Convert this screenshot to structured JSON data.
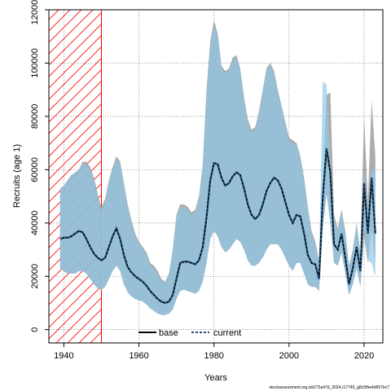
{
  "chart_data": {
    "type": "line",
    "xlabel": "Years",
    "ylabel": "Recruits (age 1)",
    "xlim": [
      1936,
      2025
    ],
    "ylim": [
      -5000,
      120000
    ],
    "xticks": [
      1940,
      1960,
      1980,
      2000,
      2020
    ],
    "yticks": [
      0,
      20000,
      40000,
      60000,
      80000,
      100000,
      120000
    ],
    "grid": true,
    "legend_position": "bottom-center",
    "shaded_region": {
      "x_start": 1936,
      "x_end": 1950,
      "pattern": "hatched",
      "color": "#ff0000"
    },
    "x": [
      1939,
      1940,
      1941,
      1942,
      1943,
      1944,
      1945,
      1946,
      1947,
      1948,
      1949,
      1950,
      1951,
      1952,
      1953,
      1954,
      1955,
      1956,
      1957,
      1958,
      1959,
      1960,
      1961,
      1962,
      1963,
      1964,
      1965,
      1966,
      1967,
      1968,
      1969,
      1970,
      1971,
      1972,
      1973,
      1974,
      1975,
      1976,
      1977,
      1978,
      1979,
      1980,
      1981,
      1982,
      1983,
      1984,
      1985,
      1986,
      1987,
      1988,
      1989,
      1990,
      1991,
      1992,
      1993,
      1994,
      1995,
      1996,
      1997,
      1998,
      1999,
      2000,
      2001,
      2002,
      2003,
      2004,
      2005,
      2006,
      2007,
      2008,
      2009,
      2010,
      2011,
      2012,
      2013,
      2014,
      2015,
      2016,
      2017,
      2018,
      2019,
      2020,
      2021,
      2022,
      2023
    ],
    "series": [
      {
        "name": "base",
        "color": "#000000",
        "values": [
          34000,
          34500,
          34500,
          35000,
          36000,
          37000,
          36500,
          34000,
          31000,
          28500,
          27000,
          26000,
          27000,
          31000,
          35000,
          38000,
          34000,
          28000,
          23500,
          21500,
          20000,
          19000,
          18000,
          16500,
          14500,
          13000,
          11500,
          10500,
          10000,
          10500,
          13000,
          19000,
          25000,
          25500,
          25500,
          25000,
          24500,
          26000,
          31000,
          42000,
          56000,
          62500,
          62000,
          57000,
          54000,
          55000,
          57500,
          59000,
          58000,
          53000,
          47000,
          43000,
          41500,
          43000,
          47000,
          52000,
          55000,
          57000,
          56000,
          53000,
          48000,
          43000,
          40000,
          43000,
          42500,
          36000,
          28000,
          25000,
          24500,
          19000,
          50000,
          68000,
          59000,
          32000,
          30000,
          36000,
          27000,
          17000,
          23000,
          31000,
          22000,
          55000,
          36000,
          57000,
          36000
        ]
      },
      {
        "name": "current",
        "color": "#1f4e79",
        "values": [
          34000,
          34500,
          34500,
          35000,
          36000,
          37000,
          36500,
          34000,
          31000,
          28500,
          27000,
          26000,
          27000,
          31000,
          35000,
          38000,
          34000,
          28000,
          23500,
          21500,
          20000,
          19000,
          18000,
          16500,
          14500,
          13000,
          11500,
          10500,
          10000,
          10500,
          13000,
          19000,
          25000,
          25500,
          25500,
          25000,
          24500,
          26000,
          31000,
          42000,
          56000,
          62500,
          62000,
          57000,
          54000,
          55000,
          57500,
          59000,
          58000,
          53000,
          47000,
          43000,
          41500,
          43000,
          47000,
          52000,
          55000,
          57000,
          56000,
          53000,
          48000,
          43000,
          40000,
          43000,
          42500,
          36000,
          28000,
          25000,
          24500,
          19000,
          50000,
          68000,
          59000,
          32000,
          30000,
          36000,
          27000,
          17000,
          23000,
          31000,
          22000,
          55000,
          36000,
          57000,
          36000
        ]
      }
    ],
    "intervals": [
      {
        "series": "base",
        "color": "#9e9e9e",
        "upper": [
          53000,
          54000,
          56000,
          58000,
          59000,
          60000,
          63000,
          63000,
          61000,
          57000,
          51000,
          46000,
          49000,
          56000,
          61000,
          65000,
          63000,
          55000,
          47000,
          41000,
          36000,
          33000,
          31000,
          29000,
          25000,
          24000,
          22000,
          19000,
          18000,
          21000,
          30000,
          43000,
          47000,
          47000,
          46000,
          44000,
          45000,
          50000,
          62000,
          90000,
          108000,
          116000,
          111000,
          99000,
          97000,
          98000,
          102000,
          103000,
          98000,
          87000,
          79000,
          75000,
          76000,
          82000,
          90000,
          98000,
          100000,
          97000,
          90000,
          84000,
          78000,
          72000,
          71000,
          70000,
          65000,
          57000,
          46000,
          37000,
          33000,
          26000,
          55000,
          88000,
          89000,
          43000,
          38000,
          45000,
          37000,
          24000,
          30000,
          40000,
          29000,
          80000,
          48000,
          86000,
          65000
        ],
        "lower": [
          23000,
          22000,
          21000,
          21000,
          21000,
          22000,
          22000,
          21000,
          19000,
          17000,
          15500,
          15000,
          16000,
          19000,
          22000,
          24000,
          22000,
          17000,
          14000,
          12500,
          11500,
          11000,
          10500,
          9500,
          8000,
          7000,
          6000,
          5500,
          5500,
          6000,
          7500,
          11500,
          14500,
          15000,
          14500,
          14000,
          13500,
          14500,
          18000,
          25000,
          34000,
          37000,
          35000,
          31000,
          29000,
          30000,
          32000,
          34000,
          33000,
          30000,
          26000,
          24000,
          24000,
          25000,
          27000,
          30000,
          32000,
          32000,
          32000,
          30000,
          27000,
          24000,
          22000,
          25000,
          25000,
          21000,
          17000,
          16000,
          16000,
          14500,
          38000,
          51000,
          40000,
          25000,
          24000,
          29000,
          21000,
          13000,
          17000,
          23000,
          16000,
          35000,
          25000,
          38000,
          25000
        ]
      },
      {
        "series": "current",
        "color": "#8ec8e8",
        "upper": [
          53000,
          54000,
          56000,
          58000,
          59000,
          60000,
          62000,
          62000,
          60000,
          56000,
          50000,
          45000,
          48000,
          55000,
          60000,
          64000,
          62000,
          54000,
          46000,
          40000,
          35000,
          32000,
          30000,
          28000,
          24000,
          23000,
          21000,
          18500,
          17500,
          20500,
          29500,
          42000,
          46000,
          46000,
          45000,
          43000,
          44000,
          49000,
          61000,
          88000,
          106000,
          114000,
          110000,
          98000,
          96000,
          97000,
          101000,
          102000,
          97000,
          86000,
          78000,
          74000,
          75000,
          81000,
          89000,
          97000,
          99000,
          96000,
          89000,
          83000,
          77000,
          71000,
          70000,
          69000,
          64000,
          56000,
          45000,
          36000,
          32000,
          25500,
          93000,
          92000,
          60000,
          42000,
          37000,
          44000,
          36000,
          23500,
          29500,
          39500,
          28500,
          61000,
          44000,
          60000,
          60000
        ],
        "lower": [
          23000,
          22000,
          21000,
          21000,
          21000,
          22000,
          22000,
          21000,
          19000,
          17000,
          15500,
          15000,
          16000,
          19000,
          22000,
          24000,
          22000,
          17000,
          14000,
          12500,
          11500,
          11000,
          10500,
          9500,
          8000,
          7000,
          6000,
          5500,
          5500,
          6000,
          7500,
          11500,
          14500,
          15000,
          14500,
          14000,
          13500,
          14500,
          18000,
          25000,
          34000,
          37000,
          35000,
          31000,
          29000,
          30000,
          32000,
          34000,
          33000,
          30000,
          26000,
          24000,
          24000,
          25000,
          27000,
          30000,
          32000,
          32000,
          32000,
          30000,
          27000,
          24000,
          22000,
          25000,
          25000,
          21000,
          17000,
          16000,
          16000,
          14500,
          38000,
          51000,
          40000,
          25000,
          24000,
          29000,
          21000,
          13000,
          17000,
          23000,
          16000,
          38000,
          26000,
          25000,
          20000
        ]
      }
    ],
    "tick_labels_x": [
      "1940",
      "1960",
      "1980",
      "2000",
      "2020"
    ],
    "tick_labels_y": [
      "0",
      "20000",
      "40000",
      "60000",
      "80000",
      "100000",
      "120000"
    ],
    "legend": [
      {
        "label": "base",
        "style": "solid",
        "color": "#000000"
      },
      {
        "label": "current",
        "style": "dashed",
        "color": "#1f4e79"
      }
    ]
  },
  "watermark": "stockassessment.org,wb273a47d_2024,r17745_g8c5fbe4d657bc7"
}
